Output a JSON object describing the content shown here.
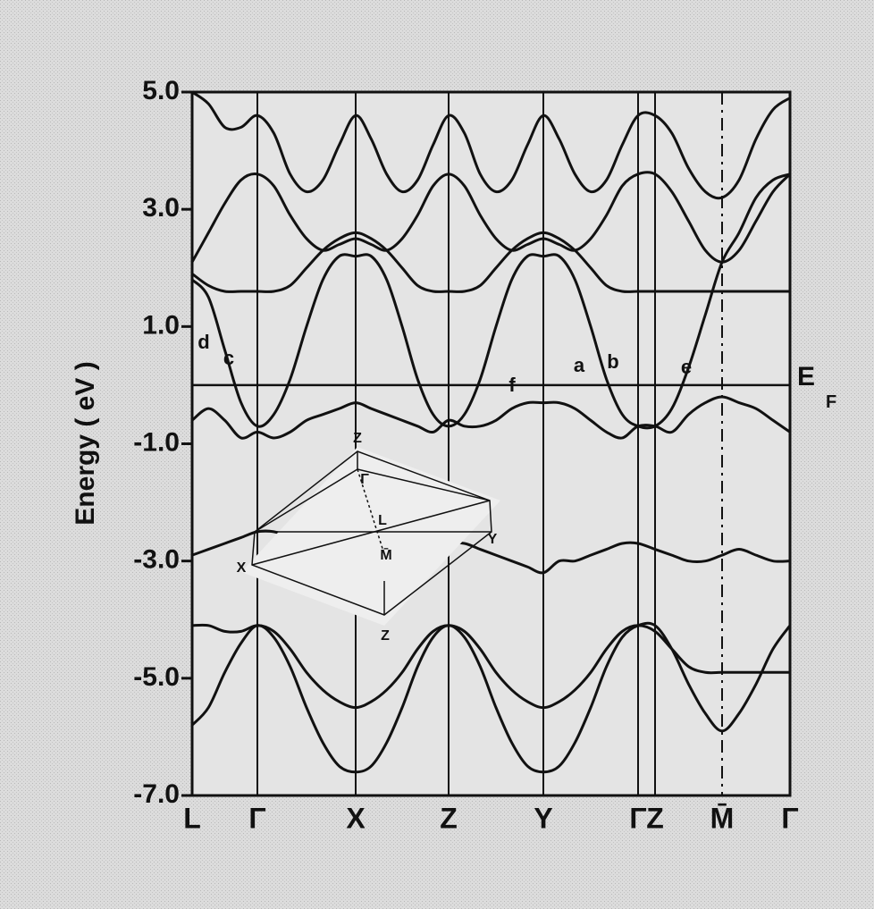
{
  "chart_data": {
    "type": "line",
    "y_label": "Energy ( eV )",
    "categories": [
      "L",
      null,
      null,
      null,
      "Γ",
      null,
      null,
      null,
      null,
      null,
      "X",
      null,
      null,
      null,
      null,
      null,
      "Z",
      null,
      null,
      null,
      null,
      null,
      "Y",
      null,
      null,
      null,
      null,
      null,
      "Γ",
      "Z",
      null,
      null,
      null,
      "M̄",
      null,
      null,
      null,
      "Γ"
    ],
    "ylim": [
      -7,
      5
    ],
    "yticks": [
      {
        "value": 5,
        "label": "5.0"
      },
      {
        "value": 3,
        "label": "3.0"
      },
      {
        "value": 1,
        "label": "1.0"
      },
      {
        "value": -1,
        "label": "-1.0"
      },
      {
        "value": -3,
        "label": "-3.0"
      },
      {
        "value": -5,
        "label": "-5.0"
      },
      {
        "value": -7,
        "label": "-7.0"
      }
    ],
    "fermi_level": 0,
    "fermi_label": [
      "E",
      "F"
    ],
    "band_labels": [
      "d",
      "c",
      "f",
      "a",
      "b",
      "e"
    ],
    "inset_labels": [
      "Z",
      "Γ",
      "L",
      "M̄",
      "Y",
      "X",
      "Z"
    ],
    "series": [
      {
        "color": "#111111",
        "values": [
          -5.8,
          -5.5,
          -4.9,
          -4.4,
          -4.1,
          -4.3,
          -4.8,
          -5.5,
          -6.1,
          -6.5,
          -6.6,
          -6.5,
          -6.1,
          -5.5,
          -4.8,
          -4.3,
          -4.1,
          -4.3,
          -4.8,
          -5.5,
          -6.1,
          -6.5,
          -6.6,
          -6.5,
          -6.1,
          -5.5,
          -4.8,
          -4.3,
          -4.1,
          -4.1,
          -4.5,
          -5.1,
          -5.6,
          -5.9,
          -5.6,
          -5.1,
          -4.5,
          -4.1
        ]
      },
      {
        "color": "#111111",
        "values": [
          -4.1,
          -4.1,
          -4.2,
          -4.2,
          -4.1,
          -4.2,
          -4.5,
          -4.9,
          -5.2,
          -5.4,
          -5.5,
          -5.4,
          -5.2,
          -4.9,
          -4.5,
          -4.2,
          -4.1,
          -4.2,
          -4.5,
          -4.9,
          -5.2,
          -5.4,
          -5.5,
          -5.4,
          -5.2,
          -4.9,
          -4.5,
          -4.2,
          -4.1,
          -4.2,
          -4.5,
          -4.8,
          -4.9,
          -4.9,
          -4.9,
          -4.9,
          -4.9,
          -4.9
        ]
      },
      {
        "color": "#111111",
        "values": [
          -2.9,
          -2.8,
          -2.7,
          -2.6,
          -2.5,
          -2.5,
          -2.6,
          -2.8,
          -3.0,
          -3.1,
          -3.2,
          -3.2,
          -3.1,
          -3.0,
          -2.9,
          -2.8,
          -2.7,
          -2.7,
          -2.8,
          -2.9,
          -3.0,
          -3.1,
          -3.2,
          -3.0,
          -3.0,
          -2.9,
          -2.8,
          -2.7,
          -2.7,
          -2.8,
          -2.9,
          -3.0,
          -3.0,
          -2.9,
          -2.8,
          -2.9,
          -3.0,
          -3.0
        ]
      },
      {
        "color": "#111111",
        "values": [
          -0.6,
          -0.4,
          -0.6,
          -0.9,
          -0.8,
          -0.9,
          -0.8,
          -0.6,
          -0.5,
          -0.4,
          -0.3,
          -0.4,
          -0.5,
          -0.6,
          -0.7,
          -0.8,
          -0.6,
          -0.7,
          -0.7,
          -0.6,
          -0.4,
          -0.3,
          -0.3,
          -0.3,
          -0.4,
          -0.6,
          -0.8,
          -0.9,
          -0.7,
          -0.7,
          -0.8,
          -0.5,
          -0.3,
          -0.2,
          -0.3,
          -0.4,
          -0.6,
          -0.8
        ]
      },
      {
        "color": "#111111",
        "values": [
          1.8,
          1.5,
          0.6,
          -0.3,
          -0.7,
          -0.5,
          0.1,
          1.0,
          1.8,
          2.2,
          2.2,
          2.2,
          1.8,
          1.0,
          0.1,
          -0.5,
          -0.7,
          -0.5,
          0.1,
          1.0,
          1.8,
          2.2,
          2.2,
          2.2,
          1.8,
          1.0,
          0.1,
          -0.5,
          -0.7,
          -0.7,
          -0.4,
          0.3,
          1.2,
          2.1,
          2.6,
          3.2,
          3.5,
          3.6
        ]
      },
      {
        "color": "#111111",
        "values": [
          1.9,
          1.7,
          1.6,
          1.6,
          1.6,
          1.6,
          1.7,
          2.0,
          2.3,
          2.5,
          2.6,
          2.5,
          2.3,
          2.0,
          1.7,
          1.6,
          1.6,
          1.6,
          1.7,
          2.0,
          2.3,
          2.5,
          2.6,
          2.5,
          2.3,
          2.0,
          1.7,
          1.6,
          1.6,
          1.6,
          1.6,
          1.6,
          1.6,
          1.6,
          1.6,
          1.6,
          1.6,
          1.6
        ]
      },
      {
        "color": "#111111",
        "values": [
          2.1,
          2.6,
          3.1,
          3.5,
          3.6,
          3.4,
          2.9,
          2.5,
          2.3,
          2.4,
          2.5,
          2.4,
          2.3,
          2.5,
          2.9,
          3.4,
          3.6,
          3.4,
          2.9,
          2.5,
          2.3,
          2.4,
          2.5,
          2.4,
          2.3,
          2.5,
          2.9,
          3.4,
          3.6,
          3.6,
          3.3,
          2.8,
          2.3,
          2.1,
          2.3,
          2.8,
          3.3,
          3.6
        ]
      },
      {
        "color": "#111111",
        "values": [
          5.0,
          4.8,
          4.4,
          4.4,
          4.6,
          4.3,
          3.6,
          3.3,
          3.5,
          4.1,
          4.6,
          4.2,
          3.6,
          3.3,
          3.5,
          4.1,
          4.6,
          4.3,
          3.6,
          3.3,
          3.5,
          4.1,
          4.6,
          4.2,
          3.6,
          3.3,
          3.5,
          4.1,
          4.6,
          4.6,
          4.3,
          3.7,
          3.3,
          3.2,
          3.5,
          4.2,
          4.7,
          4.9
        ]
      }
    ]
  }
}
